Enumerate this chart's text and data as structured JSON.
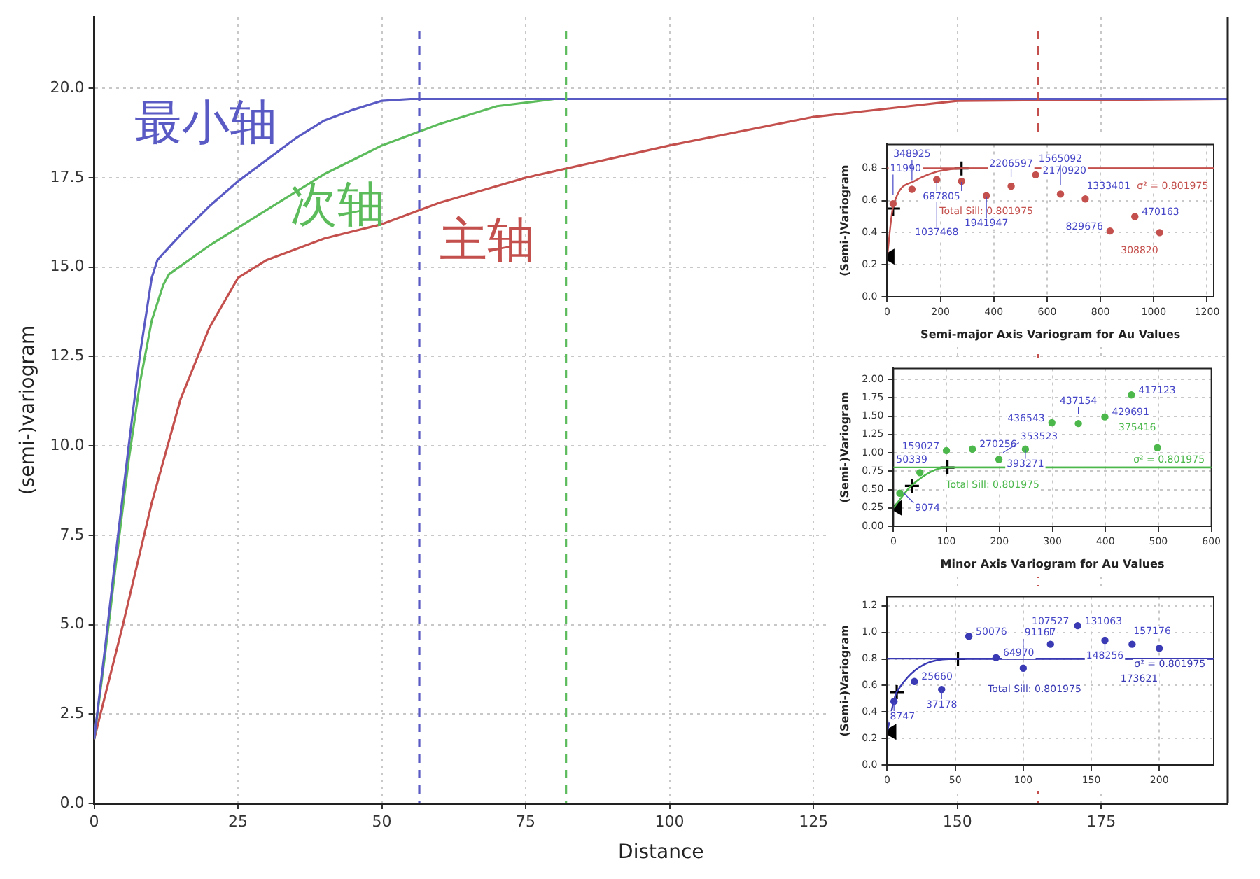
{
  "chart_data": [
    {
      "type": "line",
      "xlabel": "Distance",
      "ylabel": "(semi-)variogram",
      "xlim": [
        0,
        197
      ],
      "xticks": [
        0,
        25,
        50,
        75,
        100,
        125,
        150,
        175
      ],
      "ylim": [
        0,
        22
      ],
      "yticks": [
        {
          "value": 0,
          "label": "0.0"
        },
        2.5,
        {
          "value": 5,
          "label": "5.0"
        },
        7.5,
        {
          "value": 10,
          "label": "10.0"
        },
        12.5,
        {
          "value": 15,
          "label": "15.0"
        },
        17.5,
        {
          "value": 20,
          "label": "20.0"
        }
      ],
      "grid": true,
      "legend": false,
      "marker": "none",
      "series": [
        {
          "name": "最小轴",
          "color": "#5a5ac4",
          "x": [
            0,
            2,
            4,
            6,
            8,
            10,
            11,
            15,
            20,
            25,
            30,
            35,
            40,
            45,
            50,
            55,
            197
          ],
          "values": [
            1.8,
            4.5,
            7.3,
            10,
            12.6,
            14.7,
            15.2,
            15.9,
            16.7,
            17.4,
            18.0,
            18.6,
            19.1,
            19.4,
            19.65,
            19.7,
            19.7
          ]
        },
        {
          "name": "次轴",
          "color": "#5cbc5c",
          "x": [
            0,
            2,
            4,
            6,
            8,
            10,
            12,
            13,
            20,
            25,
            30,
            40,
            50,
            60,
            70,
            80,
            197
          ],
          "values": [
            1.8,
            4.3,
            7,
            9.6,
            11.8,
            13.5,
            14.5,
            14.8,
            15.6,
            16.1,
            16.6,
            17.6,
            18.4,
            19.0,
            19.5,
            19.7,
            19.7
          ]
        },
        {
          "name": "主轴",
          "color": "#c4504d",
          "x": [
            0,
            5,
            10,
            15,
            20,
            25,
            30,
            40,
            50,
            60,
            75,
            100,
            125,
            150,
            197
          ],
          "values": [
            1.8,
            5,
            8.4,
            11.3,
            13.3,
            14.7,
            15.2,
            15.8,
            16.2,
            16.8,
            17.5,
            18.4,
            19.2,
            19.65,
            19.7
          ]
        }
      ],
      "ref_lines": [
        {
          "axis": "x",
          "value": 56.5,
          "color": "#5a5ac4",
          "line_style": "dashed"
        },
        {
          "axis": "x",
          "value": 82,
          "color": "#5cbc5c",
          "line_style": "dashed"
        },
        {
          "axis": "x",
          "value": 164,
          "color": "#c4504d",
          "line_style": "dashed"
        }
      ]
    },
    {
      "type": "scatter",
      "xlabel": "Semi-major Axis Variogram for Au Values",
      "ylabel": "(Semi-)Variogram",
      "xlim": [
        0,
        1225
      ],
      "xticks": [
        0,
        200,
        400,
        600,
        800,
        1000,
        1200
      ],
      "ylim": [
        0,
        0.95
      ],
      "yticks": [
        {
          "value": 0,
          "label": "0.0"
        },
        0.2,
        0.4,
        0.6,
        0.8
      ],
      "grid": true,
      "marker": "circle",
      "series": [
        {
          "color": "#c4504d",
          "x": [
            22,
            93,
            186,
            279,
            372,
            465,
            557,
            650,
            743,
            836,
            929,
            1022
          ],
          "values": [
            0.58,
            0.67,
            0.73,
            0.72,
            0.63,
            0.69,
            0.76,
            0.64,
            0.61,
            0.41,
            0.5,
            0.4
          ]
        },
        {
          "type": "line",
          "color": "#c4504d",
          "marker": "none",
          "x": [
            0,
            22,
            100,
            279,
            1225
          ],
          "values": [
            0.25,
            0.56,
            0.72,
            0.8,
            0.8
          ]
        },
        {
          "color": "#000000",
          "marker": "cross",
          "x": [
            22,
            279
          ],
          "values": [
            0.55,
            0.8
          ]
        },
        {
          "color": "#000000",
          "marker": "triangle",
          "x": [
            10
          ],
          "values": [
            0.25
          ]
        }
      ],
      "ref_lines": [
        {
          "axis": "y",
          "value": 0.801975,
          "label": "Total Sill: 0.801975",
          "color": "#c4504d"
        }
      ],
      "annotations": [
        {
          "text": "σ² = 0.801975",
          "x": 1210,
          "y": 0.801975
        },
        {
          "text": "11990",
          "x": 22,
          "y": 0.58
        },
        {
          "text": "348925",
          "x": 93,
          "y": 0.67
        },
        {
          "text": "1037468",
          "x": 186,
          "y": 0.73
        },
        {
          "text": "687805",
          "x": 279,
          "y": 0.72
        },
        {
          "text": "1941947",
          "x": 372,
          "y": 0.63
        },
        {
          "text": "2206597",
          "x": 465,
          "y": 0.69
        },
        {
          "text": "2170920",
          "x": 557,
          "y": 0.76
        },
        {
          "text": "1565092",
          "x": 650,
          "y": 0.64
        },
        {
          "text": "1333401",
          "x": 743,
          "y": 0.61
        },
        {
          "text": "829676",
          "x": 836,
          "y": 0.41
        },
        {
          "text": "470163",
          "x": 929,
          "y": 0.5
        },
        {
          "text": "308820",
          "x": 1022,
          "y": 0.4
        }
      ]
    },
    {
      "type": "scatter",
      "xlabel": "Minor Axis Variogram for Au Values",
      "ylabel": "(Semi-)Variogram",
      "xlim": [
        0,
        600
      ],
      "xticks": [
        0,
        100,
        200,
        300,
        400,
        500,
        600
      ],
      "ylim": [
        0,
        2.15
      ],
      "yticks": [
        {
          "value": 0,
          "label": "0.00"
        },
        0.25,
        {
          "value": 0.5,
          "label": "0.50"
        },
        0.75,
        {
          "value": 1,
          "label": "1.00"
        },
        1.25,
        {
          "value": 1.5,
          "label": "1.50"
        },
        1.75,
        {
          "value": 2,
          "label": "2.00"
        }
      ],
      "grid": true,
      "marker": "circle",
      "series": [
        {
          "color": "#4cb84c",
          "x": [
            12,
            50,
            100,
            149,
            199,
            249,
            299,
            349,
            399,
            449,
            498
          ],
          "values": [
            0.45,
            0.73,
            1.03,
            1.05,
            0.91,
            1.05,
            1.41,
            1.4,
            1.49,
            1.79,
            1.07
          ]
        },
        {
          "type": "line",
          "color": "#4cb84c",
          "marker": "none",
          "x": [
            0,
            35,
            100,
            600
          ],
          "values": [
            0.25,
            0.56,
            0.8,
            0.8
          ]
        },
        {
          "color": "#000000",
          "marker": "cross",
          "x": [
            35,
            102
          ],
          "values": [
            0.55,
            0.8
          ]
        },
        {
          "color": "#000000",
          "marker": "triangle",
          "x": [
            8
          ],
          "values": [
            0.25
          ]
        }
      ],
      "ref_lines": [
        {
          "axis": "y",
          "value": 0.801975,
          "label": "Total Sill: 0.801975",
          "color": "#4cb84c"
        }
      ],
      "annotations": [
        {
          "text": "σ² = 0.801975",
          "x": 590,
          "y": 0.801975
        },
        {
          "text": "9074",
          "x": 12,
          "y": 0.45
        },
        {
          "text": "50339",
          "x": 50,
          "y": 0.73
        },
        {
          "text": "159027",
          "x": 100,
          "y": 1.03
        },
        {
          "text": "270256",
          "x": 149,
          "y": 1.05
        },
        {
          "text": "353523",
          "x": 199,
          "y": 0.91
        },
        {
          "text": "393271",
          "x": 249,
          "y": 1.05
        },
        {
          "text": "436543",
          "x": 299,
          "y": 1.41
        },
        {
          "text": "437154",
          "x": 349,
          "y": 1.4
        },
        {
          "text": "429691",
          "x": 399,
          "y": 1.49
        },
        {
          "text": "417123",
          "x": 449,
          "y": 1.79
        },
        {
          "text": "375416",
          "x": 498,
          "y": 1.07
        }
      ]
    },
    {
      "type": "scatter",
      "ylabel": "(Semi-)Variogram",
      "xlim": [
        0,
        240
      ],
      "xticks": [
        0,
        50,
        100,
        150,
        200
      ],
      "ylim": [
        0,
        1.27
      ],
      "yticks": [
        {
          "value": 0,
          "label": "0.0"
        },
        0.2,
        0.4,
        0.6,
        0.8,
        {
          "value": 1,
          "label": "1.0"
        },
        1.2
      ],
      "grid": true,
      "marker": "circle",
      "series": [
        {
          "color": "#3a3ab4",
          "x": [
            5,
            20,
            40,
            60,
            80,
            100,
            120,
            140,
            160,
            180,
            200
          ],
          "values": [
            0.48,
            0.63,
            0.57,
            0.97,
            0.81,
            0.73,
            0.91,
            1.05,
            0.94,
            0.91,
            0.88
          ]
        },
        {
          "type": "line",
          "color": "#3a3ab4",
          "marker": "none",
          "x": [
            0,
            7,
            52,
            240
          ],
          "values": [
            0.25,
            0.55,
            0.8,
            0.8
          ]
        },
        {
          "color": "#000000",
          "marker": "cross",
          "x": [
            7,
            52
          ],
          "values": [
            0.55,
            0.8
          ]
        },
        {
          "color": "#000000",
          "marker": "triangle",
          "x": [
            3.3
          ],
          "values": [
            0.25
          ]
        }
      ],
      "ref_lines": [
        {
          "axis": "y",
          "value": 0.801975,
          "label": "Total Sill: 0.801975",
          "color": "#3a3ab4"
        }
      ],
      "annotations": [
        {
          "text": "σ² = 0.801975",
          "x": 235,
          "y": 0.801975
        },
        {
          "text": "8747",
          "x": 5,
          "y": 0.48
        },
        {
          "text": "25660",
          "x": 20,
          "y": 0.63
        },
        {
          "text": "37178",
          "x": 40,
          "y": 0.57
        },
        {
          "text": "50076",
          "x": 60,
          "y": 0.97
        },
        {
          "text": "64970",
          "x": 80,
          "y": 0.81
        },
        {
          "text": "91167",
          "x": 100,
          "y": 0.73
        },
        {
          "text": "107527",
          "x": 120,
          "y": 0.91
        },
        {
          "text": "131063",
          "x": 140,
          "y": 1.05
        },
        {
          "text": "148256",
          "x": 160,
          "y": 0.94
        },
        {
          "text": "157176",
          "x": 180,
          "y": 0.91
        },
        {
          "text": "173621",
          "x": 200,
          "y": 0.88
        }
      ]
    }
  ]
}
